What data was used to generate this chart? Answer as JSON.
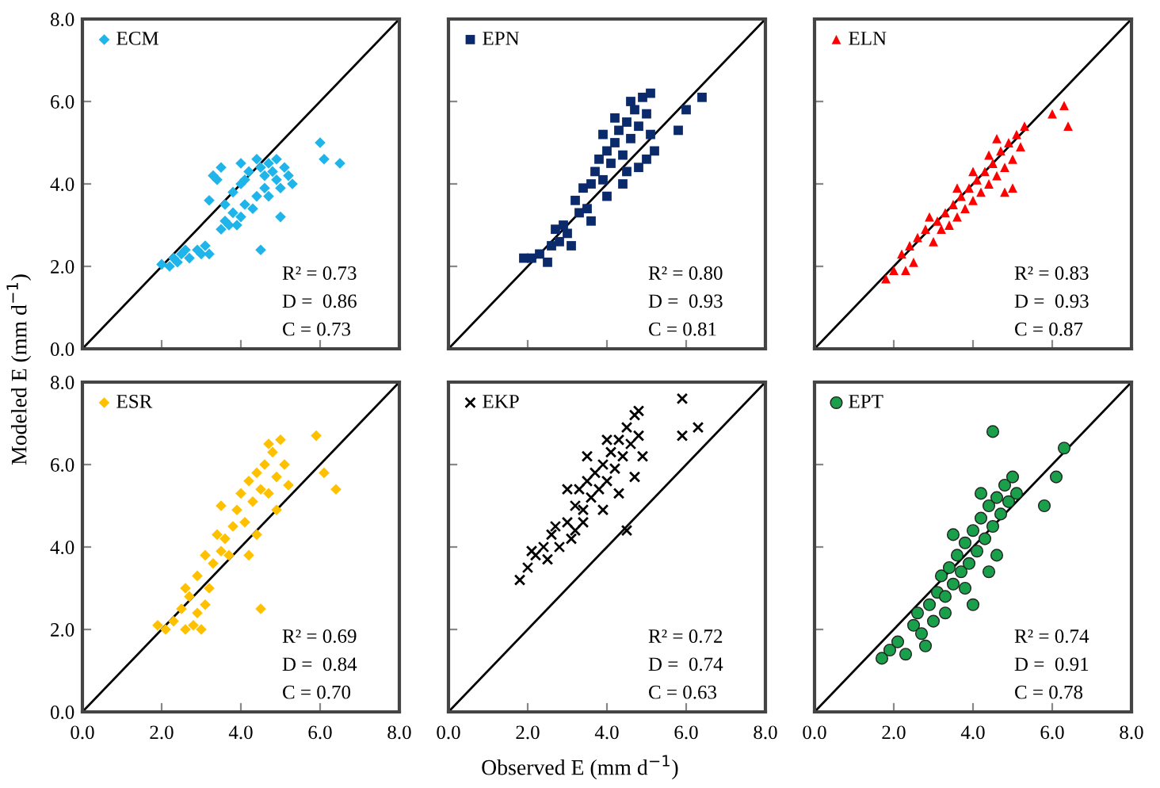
{
  "chart_data": [
    {
      "type": "scatter",
      "ylabel": "Modeled E (mm d$^{−1}$)",
      "legend": "top left",
      "tick_labels": "y",
      "xlim": [
        0,
        8
      ],
      "ylim": [
        0,
        8
      ],
      "xticks": [
        {
          "value": 0,
          "label": null
        },
        {
          "value": 2,
          "label": null
        },
        {
          "value": 4,
          "label": null
        },
        {
          "value": 6,
          "label": null
        },
        {
          "value": 8,
          "label": null
        }
      ],
      "yticks": [
        {
          "value": 0,
          "label": "0.0"
        },
        {
          "value": 2,
          "label": "2.0"
        },
        {
          "value": 4,
          "label": "4.0"
        },
        {
          "value": 6,
          "label": "6.0"
        },
        {
          "value": 8,
          "label": "8.0"
        }
      ],
      "annotations": [
        "R² = 0.73",
        "D =  0.86",
        "C = 0.73"
      ],
      "series": [
        {
          "name": "ECM",
          "color": "#1fb4ea",
          "marker": "diamond",
          "x": [
            2.0,
            2.2,
            2.4,
            2.5,
            2.7,
            2.9,
            3.0,
            3.1,
            3.2,
            2.6,
            2.3,
            3.5,
            3.6,
            3.7,
            3.8,
            3.9,
            4.0,
            4.1,
            3.6,
            3.8,
            4.0,
            4.2,
            4.4,
            4.5,
            4.6,
            4.7,
            4.8,
            4.9,
            5.1,
            5.2,
            5.3,
            4.6,
            4.4,
            4.3,
            3.4,
            3.5,
            3.3,
            4.0,
            4.1,
            5.0,
            4.5,
            3.2,
            6.0,
            6.1,
            6.5,
            4.9,
            5.0,
            4.7
          ],
          "values": [
            2.05,
            2.0,
            2.1,
            2.3,
            2.2,
            2.4,
            2.3,
            2.5,
            2.3,
            2.4,
            2.2,
            2.9,
            3.1,
            3.0,
            3.3,
            3.0,
            3.2,
            3.5,
            3.5,
            3.8,
            4.0,
            4.3,
            4.6,
            4.4,
            4.2,
            4.5,
            4.3,
            4.1,
            4.4,
            4.2,
            4.0,
            3.9,
            3.7,
            3.4,
            4.1,
            4.4,
            4.2,
            4.5,
            4.1,
            3.2,
            2.4,
            3.6,
            5.0,
            4.6,
            4.5,
            4.6,
            3.9,
            3.7
          ]
        },
        {
          "type": "line",
          "color": "#000000",
          "x": [
            0,
            8
          ],
          "values": [
            0,
            8
          ]
        }
      ]
    },
    {
      "type": "scatter",
      "legend": "top left",
      "tick_labels": false,
      "xlim": [
        0,
        8
      ],
      "ylim": [
        0,
        8
      ],
      "xticks": [
        {
          "value": 0,
          "label": null
        },
        {
          "value": 2,
          "label": null
        },
        {
          "value": 4,
          "label": null
        },
        {
          "value": 6,
          "label": null
        },
        {
          "value": 8,
          "label": null
        }
      ],
      "yticks": [
        {
          "value": 0,
          "label": null
        },
        {
          "value": 2,
          "label": null
        },
        {
          "value": 4,
          "label": null
        },
        {
          "value": 6,
          "label": null
        },
        {
          "value": 8,
          "label": null
        }
      ],
      "annotations": [
        "R² = 0.80",
        "D =  0.93",
        "C = 0.81"
      ],
      "series": [
        {
          "name": "EPN",
          "color": "#0a2a6b",
          "marker": "square",
          "x": [
            1.9,
            2.1,
            2.3,
            2.5,
            2.6,
            2.8,
            3.0,
            3.1,
            2.9,
            3.2,
            3.4,
            3.5,
            3.6,
            3.7,
            3.8,
            3.9,
            4.0,
            4.1,
            4.2,
            4.3,
            4.4,
            4.5,
            4.6,
            4.7,
            4.8,
            4.9,
            5.0,
            5.1,
            5.2,
            4.8,
            4.4,
            4.0,
            3.6,
            4.6,
            4.2,
            3.9,
            5.0,
            6.0,
            6.4,
            5.8,
            3.3,
            2.7,
            5.1,
            4.5
          ],
          "values": [
            2.2,
            2.2,
            2.3,
            2.1,
            2.5,
            2.6,
            2.8,
            2.5,
            3.0,
            3.6,
            3.9,
            3.4,
            4.0,
            4.3,
            4.6,
            4.1,
            4.8,
            4.5,
            5.0,
            5.3,
            4.7,
            5.5,
            5.1,
            5.8,
            5.4,
            6.1,
            5.7,
            5.2,
            4.8,
            4.4,
            4.0,
            3.7,
            3.1,
            6.0,
            5.6,
            5.2,
            4.6,
            5.8,
            6.1,
            5.3,
            3.3,
            2.9,
            6.2,
            4.3
          ]
        },
        {
          "type": "line",
          "color": "#000000",
          "x": [
            0,
            8
          ],
          "values": [
            0,
            8
          ]
        }
      ]
    },
    {
      "type": "scatter",
      "legend": "top left",
      "tick_labels": false,
      "xlim": [
        0,
        8
      ],
      "ylim": [
        0,
        8
      ],
      "xticks": [
        {
          "value": 0,
          "label": null
        },
        {
          "value": 2,
          "label": null
        },
        {
          "value": 4,
          "label": null
        },
        {
          "value": 6,
          "label": null
        },
        {
          "value": 8,
          "label": null
        }
      ],
      "yticks": [
        {
          "value": 0,
          "label": null
        },
        {
          "value": 2,
          "label": null
        },
        {
          "value": 4,
          "label": null
        },
        {
          "value": 6,
          "label": null
        },
        {
          "value": 8,
          "label": null
        }
      ],
      "annotations": [
        "R² = 0.83",
        "D =  0.93",
        "C = 0.87"
      ],
      "series": [
        {
          "name": "ELN",
          "color": "#ff0000",
          "marker": "triangle",
          "x": [
            1.8,
            2.0,
            2.2,
            2.4,
            2.5,
            2.6,
            2.8,
            3.0,
            3.1,
            3.3,
            3.4,
            3.5,
            3.6,
            3.7,
            3.8,
            3.9,
            4.0,
            4.1,
            4.2,
            4.3,
            4.4,
            4.5,
            4.6,
            4.7,
            4.8,
            4.9,
            5.0,
            5.1,
            5.2,
            5.3,
            4.6,
            4.4,
            4.0,
            3.6,
            3.2,
            2.9,
            5.0,
            6.0,
            6.3,
            6.4,
            4.8,
            2.3
          ],
          "values": [
            1.7,
            1.9,
            2.3,
            2.5,
            2.1,
            2.7,
            2.9,
            2.6,
            3.1,
            3.3,
            3.0,
            3.5,
            3.2,
            3.7,
            3.4,
            3.9,
            3.6,
            4.1,
            3.8,
            4.3,
            4.0,
            4.5,
            4.2,
            4.8,
            4.4,
            5.0,
            4.6,
            5.2,
            4.9,
            5.4,
            5.1,
            4.7,
            4.3,
            3.9,
            2.9,
            3.2,
            3.9,
            5.7,
            5.9,
            5.4,
            3.8,
            1.9
          ]
        },
        {
          "type": "line",
          "color": "#000000",
          "x": [
            0,
            8
          ],
          "values": [
            0,
            8
          ]
        }
      ]
    },
    {
      "type": "scatter",
      "legend": "top left",
      "xlim": [
        0,
        8
      ],
      "ylim": [
        0,
        8
      ],
      "xticks": [
        {
          "value": 0,
          "label": "0.0"
        },
        {
          "value": 2,
          "label": "2.0"
        },
        {
          "value": 4,
          "label": "4.0"
        },
        {
          "value": 6,
          "label": "6.0"
        },
        {
          "value": 8,
          "label": "8.0"
        }
      ],
      "yticks": [
        {
          "value": 0,
          "label": "0.0"
        },
        {
          "value": 2,
          "label": "2.0"
        },
        {
          "value": 4,
          "label": "4.0"
        },
        {
          "value": 6,
          "label": "6.0"
        },
        {
          "value": 8,
          "label": "8.0"
        }
      ],
      "annotations": [
        "R² = 0.69",
        "D =  0.84",
        "C = 0.70"
      ],
      "series": [
        {
          "name": "ESR",
          "color": "#ffc000",
          "marker": "diamond",
          "x": [
            1.9,
            2.1,
            2.3,
            2.5,
            2.6,
            2.7,
            2.8,
            2.9,
            3.0,
            3.1,
            3.2,
            2.6,
            2.9,
            3.3,
            3.5,
            3.6,
            3.7,
            3.8,
            3.9,
            4.0,
            4.1,
            4.2,
            4.3,
            4.4,
            4.5,
            4.6,
            4.7,
            4.8,
            4.9,
            5.0,
            5.1,
            5.2,
            4.9,
            4.4,
            3.4,
            3.5,
            3.1,
            4.5,
            5.9,
            6.1,
            6.4,
            4.7,
            4.2
          ],
          "values": [
            2.1,
            2.0,
            2.2,
            2.5,
            2.0,
            2.8,
            2.1,
            2.4,
            2.0,
            2.6,
            3.0,
            3.0,
            3.3,
            3.6,
            3.9,
            4.2,
            3.8,
            4.5,
            4.9,
            5.3,
            4.6,
            5.6,
            5.1,
            5.8,
            5.4,
            6.0,
            5.3,
            6.3,
            5.7,
            6.6,
            6.0,
            5.5,
            4.9,
            4.3,
            4.3,
            5.0,
            3.8,
            2.5,
            6.7,
            5.8,
            5.4,
            6.5,
            3.8
          ]
        },
        {
          "type": "line",
          "color": "#000000",
          "x": [
            0,
            8
          ],
          "values": [
            0,
            8
          ]
        }
      ]
    },
    {
      "type": "scatter",
      "xlabel": "Observed E (mm d$^{−1}$)",
      "legend": "top left",
      "tick_labels": "x",
      "xlim": [
        0,
        8
      ],
      "ylim": [
        0,
        8
      ],
      "xticks": [
        {
          "value": 0,
          "label": "0.0"
        },
        {
          "value": 2,
          "label": "2.0"
        },
        {
          "value": 4,
          "label": "4.0"
        },
        {
          "value": 6,
          "label": "6.0"
        },
        {
          "value": 8,
          "label": "8.0"
        }
      ],
      "yticks": [
        {
          "value": 0,
          "label": null
        },
        {
          "value": 2,
          "label": null
        },
        {
          "value": 4,
          "label": null
        },
        {
          "value": 6,
          "label": null
        },
        {
          "value": 8,
          "label": null
        }
      ],
      "annotations": [
        "R² = 0.72",
        "D =  0.74",
        "C = 0.63"
      ],
      "series": [
        {
          "name": "EKP",
          "color": "#000000",
          "marker": "cross",
          "x": [
            1.8,
            2.0,
            2.2,
            2.4,
            2.6,
            2.5,
            2.7,
            2.8,
            3.0,
            3.1,
            3.2,
            3.3,
            3.4,
            3.5,
            3.6,
            3.7,
            3.8,
            3.9,
            4.0,
            4.1,
            4.2,
            4.3,
            4.4,
            4.5,
            4.6,
            4.7,
            4.8,
            4.9,
            4.7,
            4.3,
            3.9,
            3.4,
            3.0,
            3.5,
            4.5,
            5.9,
            5.9,
            6.3,
            2.1,
            4.8,
            3.2,
            4.0
          ],
          "values": [
            3.2,
            3.5,
            3.8,
            4.0,
            4.3,
            3.7,
            4.5,
            4.0,
            4.6,
            4.2,
            5.0,
            5.4,
            4.9,
            5.6,
            5.2,
            5.8,
            5.4,
            6.0,
            5.6,
            6.3,
            5.9,
            6.6,
            6.2,
            6.9,
            6.5,
            7.2,
            6.7,
            6.2,
            5.7,
            5.3,
            4.9,
            4.6,
            5.4,
            6.2,
            4.4,
            7.6,
            6.7,
            6.9,
            3.9,
            7.3,
            4.4,
            6.6
          ]
        },
        {
          "type": "line",
          "color": "#000000",
          "x": [
            0,
            8
          ],
          "values": [
            0,
            8
          ]
        }
      ]
    },
    {
      "type": "scatter",
      "legend": "top left",
      "tick_labels": "x",
      "xlim": [
        0,
        8
      ],
      "ylim": [
        0,
        8
      ],
      "xticks": [
        {
          "value": 0,
          "label": "0.0"
        },
        {
          "value": 2,
          "label": "2.0"
        },
        {
          "value": 4,
          "label": "4.0"
        },
        {
          "value": 6,
          "label": "6.0"
        },
        {
          "value": 8,
          "label": "8.0"
        }
      ],
      "yticks": [
        {
          "value": 0,
          "label": null
        },
        {
          "value": 2,
          "label": null
        },
        {
          "value": 4,
          "label": null
        },
        {
          "value": 6,
          "label": null
        },
        {
          "value": 8,
          "label": null
        }
      ],
      "annotations": [
        "R² = 0.74",
        "D =  0.91",
        "C = 0.78"
      ],
      "series": [
        {
          "name": "EPT",
          "color": "#1aa04a",
          "marker": "circle",
          "x": [
            1.7,
            1.9,
            2.1,
            2.3,
            2.5,
            2.6,
            2.7,
            2.9,
            3.0,
            3.1,
            3.2,
            3.3,
            3.4,
            3.5,
            3.6,
            3.7,
            3.8,
            3.9,
            4.0,
            4.1,
            4.2,
            4.3,
            4.4,
            4.5,
            4.6,
            4.7,
            4.8,
            4.9,
            5.0,
            5.1,
            4.6,
            4.4,
            3.8,
            3.5,
            4.5,
            4.0,
            6.1,
            6.3,
            5.8,
            2.8,
            3.3,
            4.2
          ],
          "values": [
            1.3,
            1.5,
            1.7,
            1.4,
            2.1,
            2.4,
            1.9,
            2.6,
            2.2,
            2.9,
            3.3,
            2.8,
            3.5,
            3.1,
            3.8,
            3.4,
            4.1,
            3.6,
            4.4,
            3.9,
            4.7,
            4.2,
            5.0,
            4.5,
            5.2,
            4.8,
            5.5,
            5.1,
            5.7,
            5.3,
            3.8,
            3.4,
            3.0,
            4.3,
            6.8,
            2.6,
            5.7,
            6.4,
            5.0,
            1.6,
            2.4,
            5.3
          ]
        },
        {
          "type": "line",
          "color": "#000000",
          "x": [
            0,
            8
          ],
          "values": [
            0,
            8
          ]
        }
      ]
    }
  ]
}
